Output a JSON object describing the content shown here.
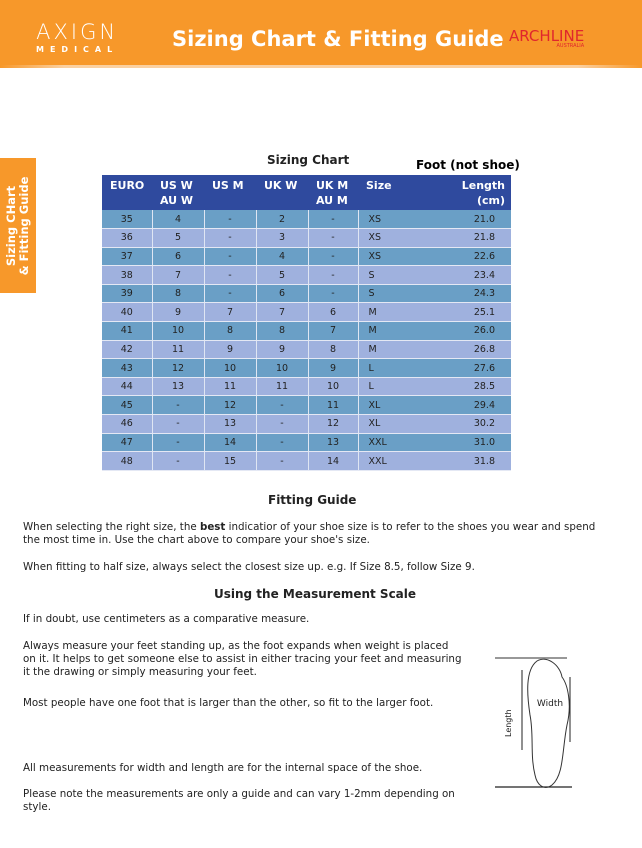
{
  "header": {
    "logo_main": "AXIGN",
    "logo_sub": "MEDICAL",
    "title": "Sizing Chart & Fitting Guide",
    "brand": "ARCHLINE",
    "brand_sub": "AUSTRALIA",
    "color": "#f7982a"
  },
  "side_tab": {
    "line1": "Sizing CHart",
    "line2": "& Fitting Guide"
  },
  "chart": {
    "title": "Sizing Chart",
    "note": "Foot (not shoe)",
    "headers": [
      [
        "EURO",
        ""
      ],
      [
        "US W",
        "AU W"
      ],
      [
        "US M",
        ""
      ],
      [
        "UK W",
        ""
      ],
      [
        "UK M",
        "AU M"
      ],
      [
        "Size",
        ""
      ],
      [
        "Length",
        "(cm)"
      ]
    ],
    "rows": [
      [
        "35",
        "4",
        "-",
        "2",
        "-",
        "XS",
        "21.0"
      ],
      [
        "36",
        "5",
        "-",
        "3",
        "-",
        "XS",
        "21.8"
      ],
      [
        "37",
        "6",
        "-",
        "4",
        "-",
        "XS",
        "22.6"
      ],
      [
        "38",
        "7",
        "-",
        "5",
        "-",
        "S",
        "23.4"
      ],
      [
        "39",
        "8",
        "-",
        "6",
        "-",
        "S",
        "24.3"
      ],
      [
        "40",
        "9",
        "7",
        "7",
        "6",
        "M",
        "25.1"
      ],
      [
        "41",
        "10",
        "8",
        "8",
        "7",
        "M",
        "26.0"
      ],
      [
        "42",
        "11",
        "9",
        "9",
        "8",
        "M",
        "26.8"
      ],
      [
        "43",
        "12",
        "10",
        "10",
        "9",
        "L",
        "27.6"
      ],
      [
        "44",
        "13",
        "11",
        "11",
        "10",
        "L",
        "28.5"
      ],
      [
        "45",
        "-",
        "12",
        "-",
        "11",
        "XL",
        "29.4"
      ],
      [
        "46",
        "-",
        "13",
        "-",
        "12",
        "XL",
        "30.2"
      ],
      [
        "47",
        "-",
        "14",
        "-",
        "13",
        "XXL",
        "31.0"
      ],
      [
        "48",
        "-",
        "15",
        "-",
        "14",
        "XXL",
        "31.8"
      ]
    ]
  },
  "fitting": {
    "title": "Fitting Guide",
    "p1a": "When selecting the right size, the ",
    "p1b": "best",
    "p1c": " indicatior of your shoe size is to refer to the shoes you wear and spend the most time in. Use the chart above to compare your shoe's size.",
    "p2": "When fitting to half size, always select the closest size up. e.g. If Size 8.5, follow Size 9."
  },
  "measure": {
    "title": "Using the Measurement Scale",
    "p1": "If in doubt, use centimeters as a comparative measure.",
    "p2": "Always measure your feet standing up, as the foot expands when weight is placed on it. It helps to get someone else to assist in either tracing your feet and measuring it the drawing or simply measuring your feet.",
    "p3": "Most people have one foot that is larger than the other, so fit to the larger foot.",
    "p4": "All measurements for width and length are for the internal space of the shoe.",
    "p5": "Please note the measurements are only a guide and can vary 1-2mm depending on style.",
    "fig_width": "Width",
    "fig_length": "Length"
  }
}
